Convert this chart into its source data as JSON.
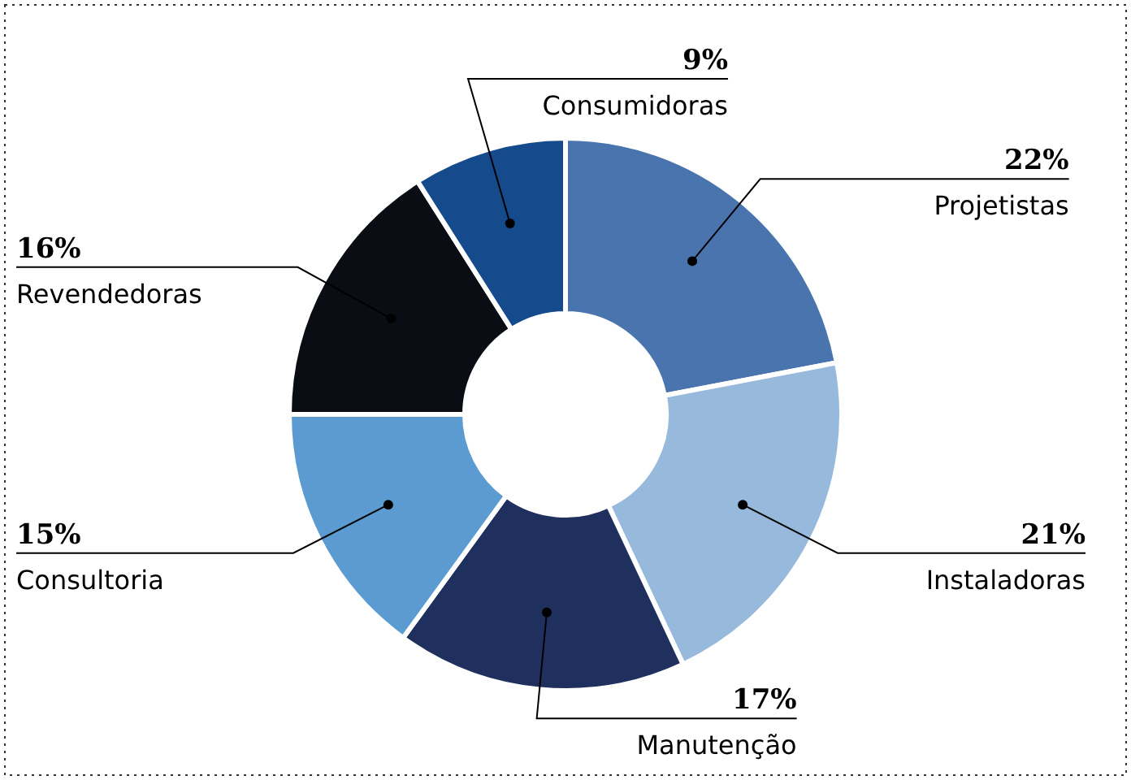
{
  "chart_data": {
    "type": "donut",
    "categories": [
      "Projetistas",
      "Instaladoras",
      "Manutenção",
      "Consultoria",
      "Revendedoras",
      "Consumidoras"
    ],
    "values": [
      22,
      21,
      17,
      15,
      16,
      9
    ],
    "colors": [
      "#4a74ad",
      "#97b9dc",
      "#1f2f5e",
      "#5b9bd1",
      "#0a0e14",
      "#154a8c"
    ],
    "value_labels": [
      "22%",
      "21%",
      "17%",
      "15%",
      "16%",
      "9%"
    ],
    "legend": false
  }
}
